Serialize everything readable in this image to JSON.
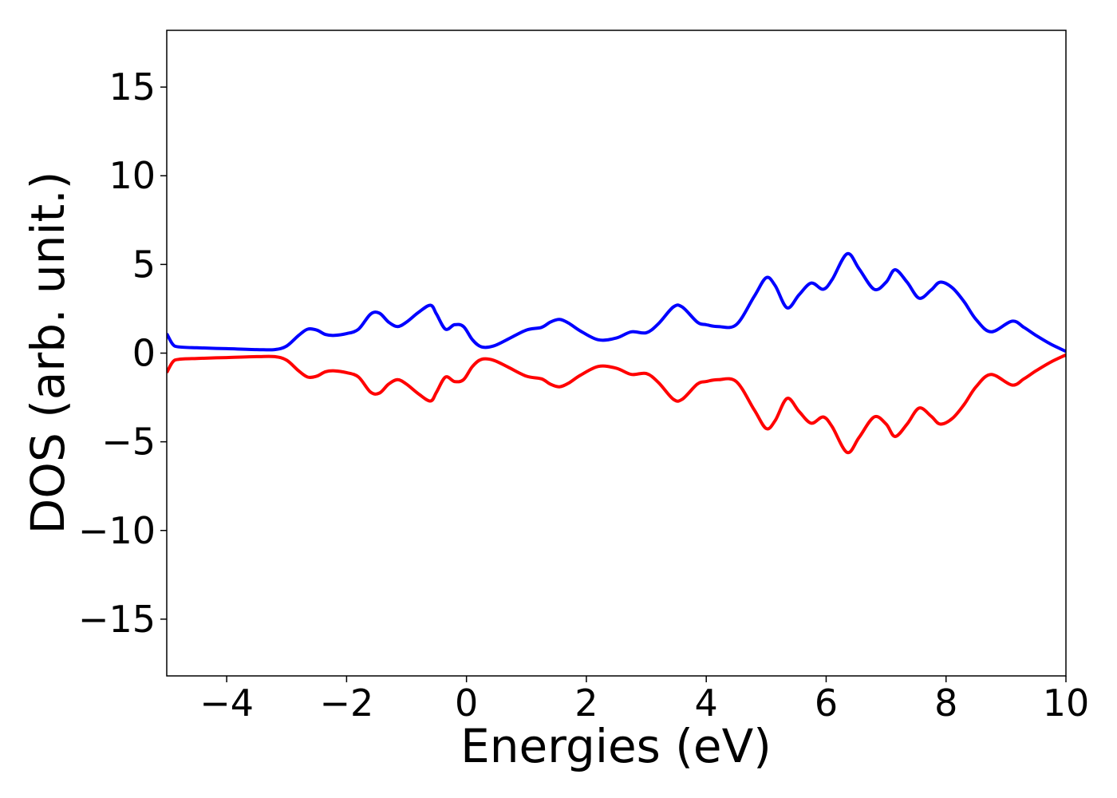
{
  "chart_data": {
    "type": "line",
    "title": "",
    "xlabel": "Energies (eV)",
    "ylabel": "DOS (arb. unit.)",
    "xlim": [
      -5,
      10
    ],
    "ylim": [
      -18.2,
      18.2
    ],
    "x_ticks": [
      -4,
      -2,
      0,
      2,
      4,
      6,
      8,
      10
    ],
    "x_tick_labels": [
      "−4",
      "−2",
      "0",
      "2",
      "4",
      "6",
      "8",
      "10"
    ],
    "y_ticks": [
      15,
      10,
      5,
      0,
      -5,
      -10,
      -15
    ],
    "y_tick_labels": [
      "15",
      "10",
      "5",
      "0",
      "−5",
      "−10",
      "−15"
    ],
    "grid": false,
    "legend": "none",
    "series": [
      {
        "color": "#0000ff",
        "x": [
          -5.0,
          -4.9,
          -4.8,
          -4.5,
          -4.0,
          -3.5,
          -3.2,
          -3.0,
          -2.8,
          -2.65,
          -2.5,
          -2.35,
          -2.2,
          -2.0,
          -1.8,
          -1.6,
          -1.45,
          -1.3,
          -1.15,
          -1.0,
          -0.8,
          -0.6,
          -0.5,
          -0.35,
          -0.2,
          -0.05,
          0.1,
          0.25,
          0.45,
          0.7,
          1.0,
          1.25,
          1.4,
          1.55,
          1.7,
          1.9,
          2.2,
          2.5,
          2.75,
          3.0,
          3.2,
          3.45,
          3.6,
          3.85,
          4.0,
          4.2,
          4.5,
          4.8,
          5.0,
          5.15,
          5.35,
          5.55,
          5.75,
          5.95,
          6.1,
          6.35,
          6.55,
          6.8,
          7.0,
          7.15,
          7.35,
          7.55,
          7.75,
          7.9,
          8.1,
          8.3,
          8.5,
          8.75,
          9.1,
          9.3,
          9.5,
          9.75,
          10.0
        ],
        "y": [
          1.1,
          0.5,
          0.35,
          0.3,
          0.25,
          0.2,
          0.2,
          0.4,
          1.0,
          1.35,
          1.3,
          1.05,
          1.0,
          1.1,
          1.35,
          2.2,
          2.25,
          1.75,
          1.5,
          1.75,
          2.3,
          2.7,
          2.2,
          1.35,
          1.6,
          1.5,
          0.75,
          0.35,
          0.4,
          0.8,
          1.3,
          1.45,
          1.75,
          1.9,
          1.7,
          1.25,
          0.75,
          0.85,
          1.2,
          1.15,
          1.65,
          2.6,
          2.6,
          1.75,
          1.6,
          1.5,
          1.6,
          3.2,
          4.25,
          3.8,
          2.55,
          3.3,
          3.95,
          3.6,
          4.15,
          5.6,
          4.75,
          3.6,
          4.0,
          4.7,
          4.0,
          3.1,
          3.55,
          4.0,
          3.7,
          2.9,
          1.9,
          1.2,
          1.8,
          1.45,
          1.0,
          0.5,
          0.1
        ]
      },
      {
        "color": "#ff0000",
        "x": [
          -5.0,
          -4.9,
          -4.8,
          -4.5,
          -4.0,
          -3.5,
          -3.2,
          -3.0,
          -2.8,
          -2.65,
          -2.5,
          -2.35,
          -2.2,
          -2.0,
          -1.8,
          -1.6,
          -1.45,
          -1.3,
          -1.15,
          -1.0,
          -0.8,
          -0.6,
          -0.5,
          -0.35,
          -0.2,
          -0.05,
          0.1,
          0.25,
          0.45,
          0.7,
          1.0,
          1.25,
          1.4,
          1.55,
          1.7,
          1.9,
          2.2,
          2.5,
          2.75,
          3.0,
          3.2,
          3.45,
          3.6,
          3.85,
          4.0,
          4.2,
          4.5,
          4.8,
          5.0,
          5.15,
          5.35,
          5.55,
          5.75,
          5.95,
          6.1,
          6.35,
          6.55,
          6.8,
          7.0,
          7.15,
          7.35,
          7.55,
          7.75,
          7.9,
          8.1,
          8.3,
          8.5,
          8.75,
          9.1,
          9.3,
          9.5,
          9.75,
          10.0
        ],
        "y": [
          -1.1,
          -0.5,
          -0.35,
          -0.3,
          -0.25,
          -0.2,
          -0.2,
          -0.4,
          -1.0,
          -1.35,
          -1.3,
          -1.05,
          -1.0,
          -1.1,
          -1.35,
          -2.2,
          -2.25,
          -1.75,
          -1.5,
          -1.75,
          -2.3,
          -2.7,
          -2.2,
          -1.35,
          -1.6,
          -1.5,
          -0.75,
          -0.35,
          -0.4,
          -0.8,
          -1.3,
          -1.45,
          -1.75,
          -1.9,
          -1.7,
          -1.25,
          -0.75,
          -0.85,
          -1.2,
          -1.15,
          -1.65,
          -2.6,
          -2.6,
          -1.75,
          -1.6,
          -1.5,
          -1.6,
          -3.2,
          -4.25,
          -3.8,
          -2.55,
          -3.3,
          -3.95,
          -3.6,
          -4.15,
          -5.6,
          -4.75,
          -3.6,
          -4.0,
          -4.7,
          -4.0,
          -3.1,
          -3.55,
          -4.0,
          -3.7,
          -2.9,
          -1.9,
          -1.2,
          -1.8,
          -1.45,
          -1.0,
          -0.5,
          -0.1
        ]
      }
    ]
  }
}
